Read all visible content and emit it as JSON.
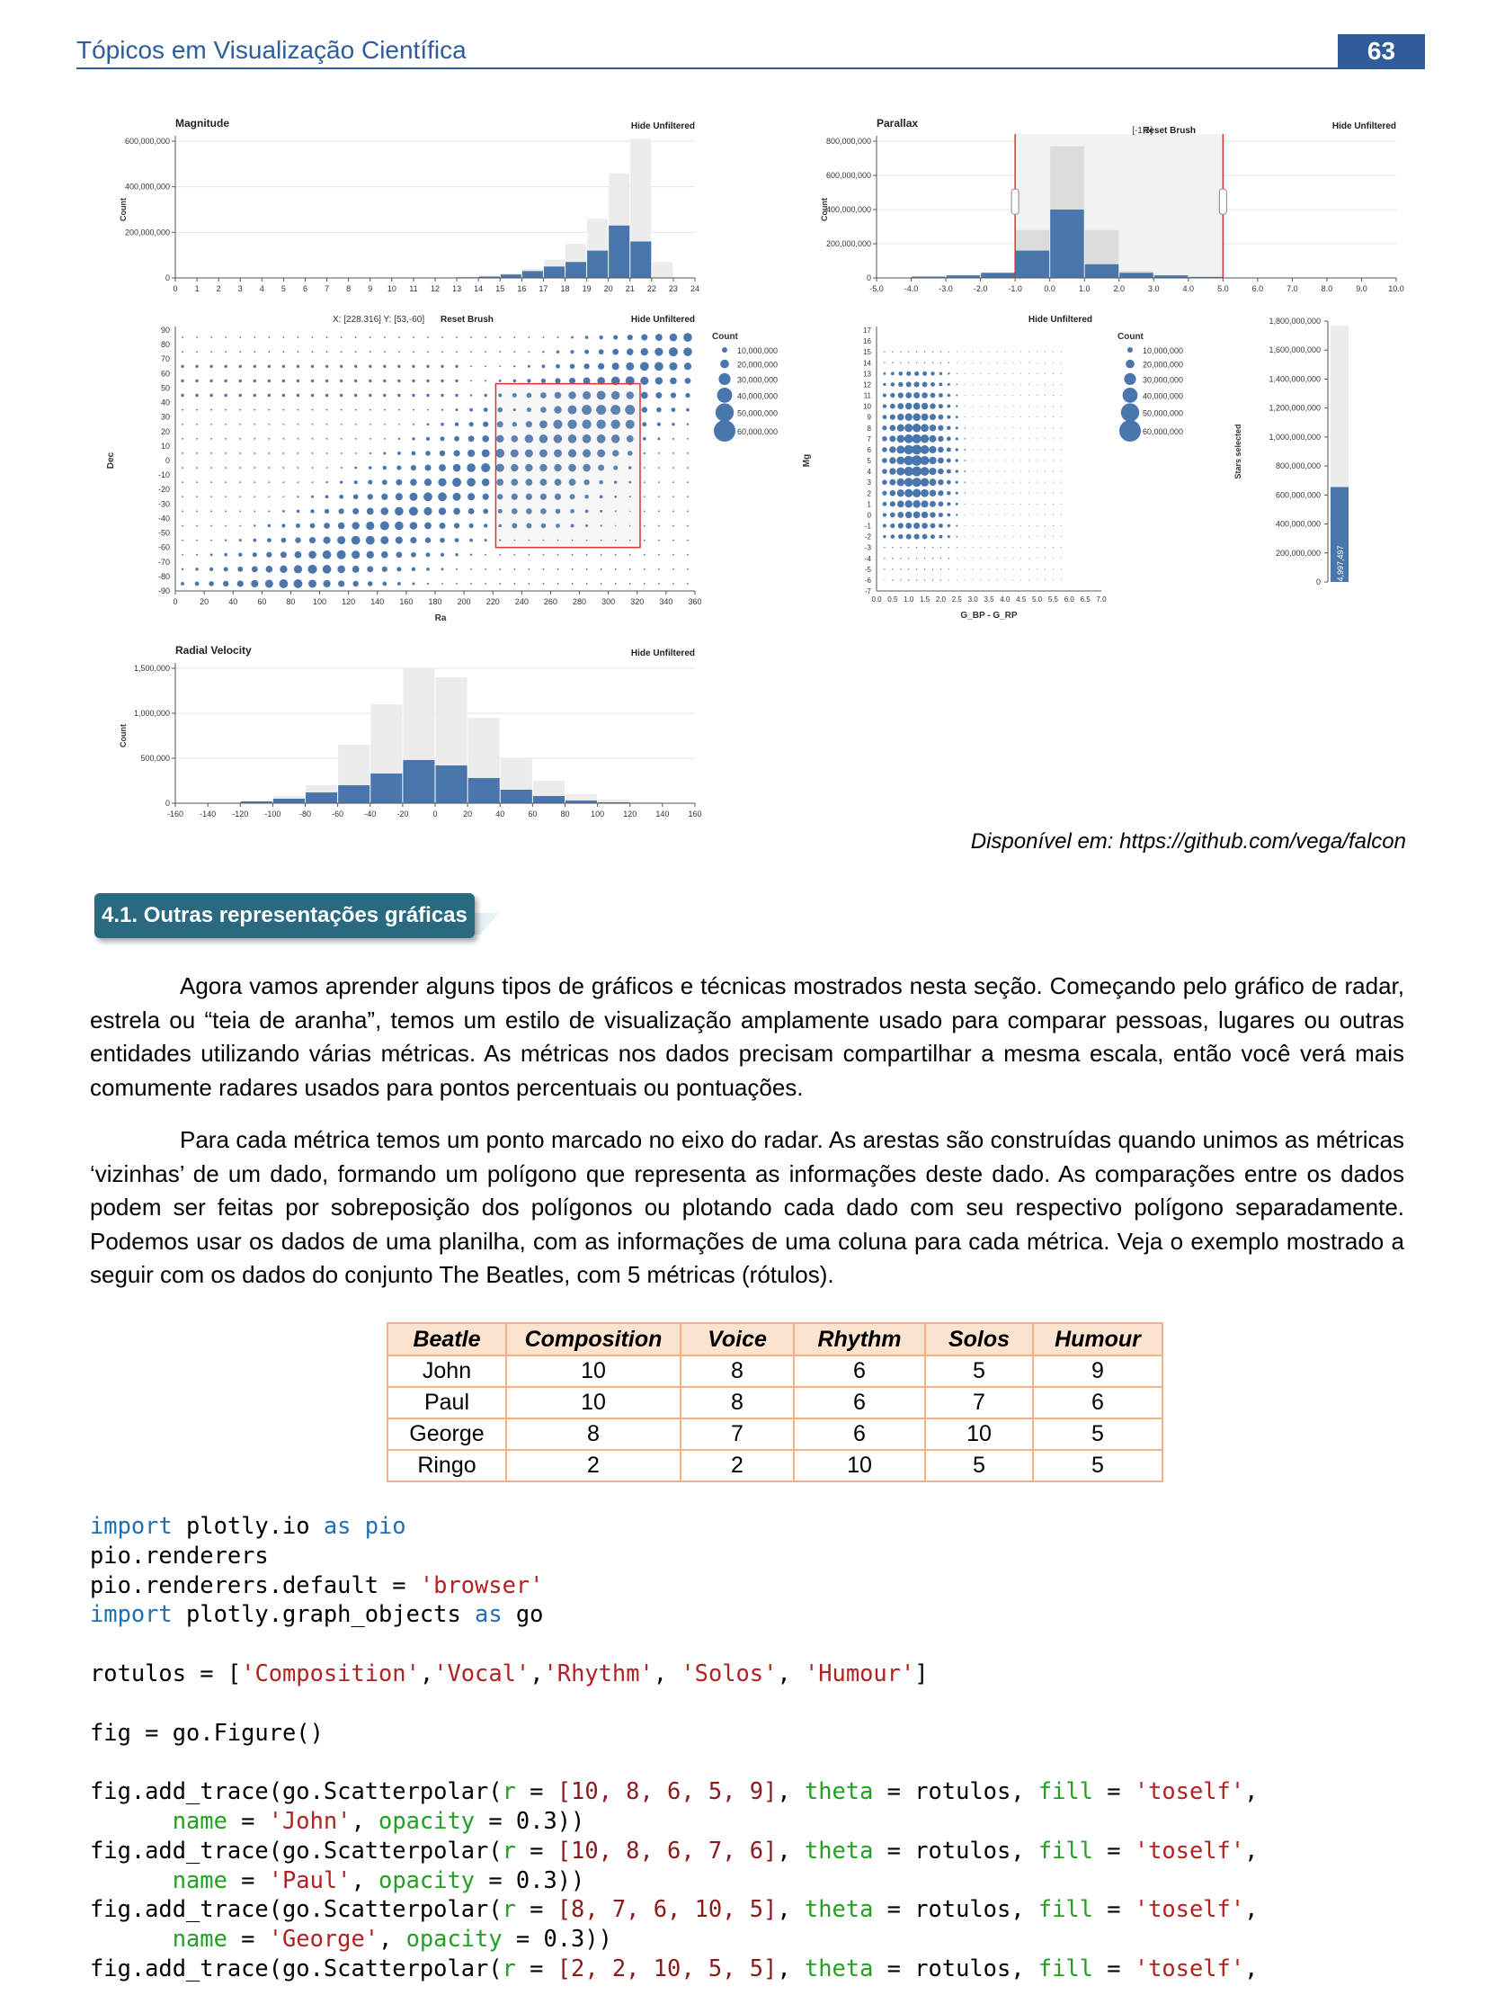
{
  "header": {
    "title": "Tópicos em Visualização Científica",
    "page_number": "63"
  },
  "chart_data": [
    {
      "type": "bar",
      "title": "Magnitude",
      "ylabel": "Count",
      "action": "Hide Unfiltered",
      "x_ticks": [
        "0",
        "1",
        "2",
        "3",
        "4",
        "5",
        "6",
        "7",
        "8",
        "9",
        "10",
        "11",
        "12",
        "13",
        "14",
        "15",
        "16",
        "17",
        "18",
        "19",
        "20",
        "21",
        "22",
        "23",
        "24"
      ],
      "y_ticks": [
        "0",
        "200,000,000",
        "400,000,000",
        "600,000,000"
      ],
      "ylim": [
        0,
        600000000
      ],
      "bins": [
        11,
        12,
        13,
        14,
        15,
        16,
        17,
        18,
        19,
        20,
        21,
        22
      ],
      "series": [
        {
          "values": [
            1000000,
            2000000,
            5000000,
            10000000,
            20000000,
            40000000,
            80000000,
            150000000,
            260000000,
            460000000,
            610000000,
            70000000
          ]
        },
        {
          "values": [
            0,
            1000000,
            3000000,
            6000000,
            15000000,
            30000000,
            50000000,
            70000000,
            120000000,
            230000000,
            160000000,
            0
          ]
        }
      ]
    },
    {
      "type": "bar",
      "title": "Parallax",
      "ylabel": "Count",
      "brush": "[-1,5]",
      "reset": "Reset Brush",
      "action": "Hide Unfiltered",
      "x_ticks": [
        "-5.0",
        "-4.0",
        "-3.0",
        "-2.0",
        "-1.0",
        "0.0",
        "1.0",
        "2.0",
        "3.0",
        "4.0",
        "5.0",
        "6.0",
        "7.0",
        "8.0",
        "9.0",
        "10.0"
      ],
      "y_ticks": [
        "0",
        "200,000,000",
        "400,000,000",
        "600,000,000",
        "800,000,000"
      ],
      "ylim": [
        0,
        800000000
      ],
      "bins": [
        -5,
        -4,
        -3,
        -2,
        -1,
        0,
        1,
        2,
        3,
        4
      ],
      "series": [
        {
          "values": [
            2000000,
            8000000,
            15000000,
            30000000,
            280000000,
            770000000,
            280000000,
            40000000,
            15000000,
            6000000
          ]
        },
        {
          "values": [
            2000000,
            8000000,
            15000000,
            30000000,
            160000000,
            400000000,
            80000000,
            30000000,
            15000000,
            6000000
          ]
        }
      ]
    },
    {
      "type": "scatter",
      "xlabel": "Ra",
      "ylabel": "Dec",
      "readout": "X: [228.316] Y: [53,-60]",
      "reset": "Reset Brush",
      "action": "Hide Unfiltered",
      "x_ticks": [
        "0",
        "20",
        "40",
        "60",
        "80",
        "100",
        "120",
        "140",
        "160",
        "180",
        "200",
        "220",
        "240",
        "260",
        "280",
        "300",
        "320",
        "340",
        "360"
      ],
      "y_ticks": [
        "90",
        "80",
        "70",
        "60",
        "50",
        "40",
        "30",
        "20",
        "10",
        "0",
        "-10",
        "-20",
        "-30",
        "-40",
        "-50",
        "-60",
        "-70",
        "-80",
        "-90"
      ],
      "legend_title": "Count",
      "legend": [
        "10,000,000",
        "20,000,000",
        "30,000,000",
        "40,000,000",
        "50,000,000",
        "60,000,000"
      ]
    },
    {
      "type": "scatter",
      "xlabel": "G_BP - G_RP",
      "ylabel": "Mg",
      "action": "Hide Unfiltered",
      "x_ticks": [
        "0.0",
        "0.5",
        "1.0",
        "1.5",
        "2.0",
        "2.5",
        "3.0",
        "3.5",
        "4.0",
        "4.5",
        "5.0",
        "5.5",
        "6.0",
        "6.5",
        "7.0"
      ],
      "y_ticks": [
        "17",
        "16",
        "15",
        "14",
        "13",
        "12",
        "11",
        "10",
        "9",
        "8",
        "7",
        "6",
        "5",
        "4",
        "3",
        "2",
        "1",
        "0",
        "-1",
        "-2",
        "-3",
        "-4",
        "-5",
        "-6",
        "-7"
      ],
      "legend_title": "Count",
      "legend": [
        "10,000,000",
        "20,000,000",
        "30,000,000",
        "40,000,000",
        "50,000,000",
        "60,000,000"
      ]
    },
    {
      "type": "bar",
      "ylabel": "Stars selected",
      "value_label": "654,997,497",
      "values": [
        654997497
      ],
      "ylim": [
        0,
        1800000000
      ],
      "y_ticks": [
        "0",
        "200,000,000",
        "400,000,000",
        "600,000,000",
        "800,000,000",
        "1,000,000,000",
        "1,200,000,000",
        "1,400,000,000",
        "1,600,000,000",
        "1,800,000,000"
      ]
    },
    {
      "type": "bar",
      "title": "Radial Velocity",
      "ylabel": "Count",
      "action": "Hide Unfiltered",
      "x_ticks": [
        "-160",
        "-140",
        "-120",
        "-100",
        "-80",
        "-60",
        "-40",
        "-20",
        "0",
        "20",
        "40",
        "60",
        "80",
        "100",
        "120",
        "140",
        "160"
      ],
      "y_ticks": [
        "0",
        "500,000",
        "1,000,000",
        "1,500,000"
      ],
      "ylim": [
        0,
        1500000
      ],
      "bins": [
        -140,
        -120,
        -100,
        -80,
        -60,
        -40,
        -20,
        0,
        20,
        40,
        60,
        80,
        100,
        120
      ],
      "series": [
        {
          "values": [
            10000,
            30000,
            80000,
            200000,
            650000,
            1100000,
            1500000,
            1400000,
            950000,
            500000,
            250000,
            100000,
            40000,
            15000
          ]
        },
        {
          "values": [
            5000,
            20000,
            50000,
            120000,
            200000,
            330000,
            480000,
            420000,
            280000,
            150000,
            80000,
            30000,
            10000,
            5000
          ]
        }
      ]
    }
  ],
  "caption": "Disponível em: https://github.com/vega/falcon",
  "section_title": "4.1. Outras representações gráficas",
  "paragraphs": [
    "Agora vamos aprender alguns tipos de gráficos e técnicas mostrados nesta seção. Começando pelo gráfico de radar, estrela ou “teia de aranha”, temos um estilo de visualização amplamente usado para comparar pessoas, lugares ou outras entidades utilizando várias métricas. As métricas nos dados precisam compartilhar a mesma escala, então você verá mais comumente radares usados para pontos percentuais ou pontuações.",
    "Para cada métrica temos um ponto marcado no eixo do radar. As arestas são construídas quando unimos as métricas ‘vizinhas’ de um dado, formando um polígono que representa as informações deste dado. As comparações entre os dados podem ser feitas por sobreposição dos polígonos ou plotando cada dado com seu respectivo polígono separadamente. Podemos usar os dados de uma planilha, com as informações de uma coluna para cada métrica. Veja o exemplo mostrado a seguir com os dados do conjunto The Beatles, com 5 métricas (rótulos)."
  ],
  "table": {
    "headers": [
      "Beatle",
      "Composition",
      "Voice",
      "Rhythm",
      "Solos",
      "Humour"
    ],
    "rows": [
      [
        "John",
        "10",
        "8",
        "6",
        "5",
        "9"
      ],
      [
        "Paul",
        "10",
        "8",
        "6",
        "7",
        "6"
      ],
      [
        "George",
        "8",
        "7",
        "6",
        "10",
        "5"
      ],
      [
        "Ringo",
        "2",
        "2",
        "10",
        "5",
        "5"
      ]
    ]
  },
  "code": {
    "l1a": "import",
    "l1b": " plotly.io ",
    "l1c": "as",
    "l1d": " pio",
    "l2": "pio.renderers",
    "l3a": "pio.renderers.default = ",
    "l3b": "'browser'",
    "l4a": "import",
    "l4b": " plotly.graph_objects ",
    "l4c": "as",
    "l4d": " go",
    "l6a": "rotulos = [",
    "l6b": "'Composition'",
    ",": ",",
    "l6c": "'Vocal'",
    "l6d": "'Rhythm'",
    "l6e": "'Solos'",
    "l6f": "'Humour'",
    "l6g": "]",
    "l8": "fig = go.Figure()",
    "add": "fig.add_trace(go.Scatterpolar(",
    "r": "r",
    " eq": " = ",
    "theta": "theta",
    "fill": "fill",
    "toself": "'toself'",
    "name": "name",
    "opacity": "opacity",
    "op": " = 0.3))",
    "r1": "[10, 8, 6, 5, 9]",
    "r2": "[10, 8, 6, 7, 6]",
    "r3": "[8, 7, 6, 10, 5]",
    "r4": "[2, 2, 10, 5, 5]",
    "n1": "'John'",
    "n2": "'Paul'",
    "n3": "'George'",
    "rot": " rotulos, "
  }
}
